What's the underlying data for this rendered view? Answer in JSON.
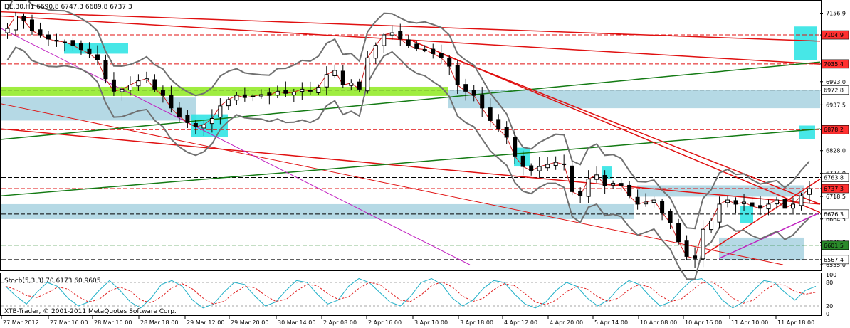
{
  "window": {
    "title": "DE.30,H1  6690.8 6747.3 6689.8 6737.3",
    "watermark": "XTB-Trader, © 2001-2011 MetaQuotes Software Corp."
  },
  "price_axis": {
    "ticks": [
      "7156.9",
      "7104.9",
      "7035.4",
      "6993.0",
      "6972.8",
      "6937.5",
      "6878.2",
      "6828.0",
      "6774.0",
      "6763.8",
      "6737.3",
      "6718.5",
      "6676.3",
      "6664.5",
      "6609.0",
      "6601.5",
      "6567.4",
      "6555.0"
    ]
  },
  "indicator": {
    "label": "Stoch(5,3,3) 70.6173 60.9605",
    "ticks": [
      "100",
      "80",
      "20",
      "0"
    ]
  },
  "colors": {
    "bull": "#ffffff",
    "bear": "#000000",
    "cyan": "#27e3e3",
    "zone": "#a8d2e0",
    "green_zone": "#8eea1e",
    "trend_red": "#e01010",
    "trend_green": "#137a13",
    "magenta": "#c020c0"
  },
  "price_labels": [
    {
      "text": "7104.9",
      "color": "#ff3030"
    },
    {
      "text": "7035.4",
      "color": "#ff3030"
    },
    {
      "text": "6972.8",
      "color": "#ffffff"
    },
    {
      "text": "6878.2",
      "color": "#ff3030"
    },
    {
      "text": "6763.8",
      "color": "#ffffff"
    },
    {
      "text": "6737.3",
      "color": "#ff3030"
    },
    {
      "text": "6676.3",
      "color": "#ffffff"
    },
    {
      "text": "6601.5",
      "color": "#2a8a2a"
    },
    {
      "text": "6567.4",
      "color": "#ffffff"
    }
  ],
  "chart_data": {
    "type": "candlestick",
    "title": "DE.30,H1  6690.8 6747.3 6689.8 6737.3",
    "symbol": "DE.30",
    "timeframe": "H1",
    "last_bar": {
      "open": 6690.8,
      "high": 6747.3,
      "low": 6689.8,
      "close": 6737.3
    },
    "time_labels": [
      "27 Mar 2012",
      "27 Mar 16:00",
      "28 Mar 10:00",
      "28 Mar 18:00",
      "29 Mar 12:00",
      "29 Mar 20:00",
      "30 Mar 14:00",
      "2 Apr 08:00",
      "2 Apr 16:00",
      "3 Apr 10:00",
      "3 Apr 18:00",
      "4 Apr 12:00",
      "4 Apr 20:00",
      "5 Apr 14:00",
      "10 Apr 08:00",
      "10 Apr 16:00",
      "11 Apr 10:00",
      "11 Apr 18:00"
    ],
    "ylim": [
      6545,
      7185
    ],
    "horizontal_levels": [
      7104.9,
      7035.4,
      6972.8,
      6878.2,
      6763.8,
      6676.3,
      6601.5,
      6567.4
    ],
    "close_path": [
      7120,
      7150,
      7140,
      7115,
      7105,
      7095,
      7090,
      7088,
      7080,
      7070,
      7060,
      7045,
      7000,
      6970,
      6975,
      6985,
      6995,
      7000,
      6975,
      6960,
      6930,
      6910,
      6895,
      6885,
      6890,
      6905,
      6935,
      6950,
      6960,
      6955,
      6958,
      6962,
      6960,
      6970,
      6965,
      6968,
      6975,
      6970,
      6980,
      7010,
      7020,
      6985,
      6990,
      6975,
      7050,
      7080,
      7105,
      7110,
      7095,
      7080,
      7072,
      7070,
      7060,
      7050,
      7030,
      6985,
      6970,
      6960,
      6930,
      6900,
      6880,
      6860,
      6815,
      6790,
      6780,
      6790,
      6795,
      6800,
      6795,
      6730,
      6720,
      6760,
      6770,
      6745,
      6750,
      6745,
      6720,
      6700,
      6705,
      6710,
      6680,
      6655,
      6610,
      6575,
      6570,
      6640,
      6660,
      6700,
      6710,
      6700,
      6705,
      6695,
      6690,
      6700,
      6710,
      6690,
      6700,
      6720,
      6737.3
    ],
    "stochastic": {
      "name": "Stoch(5,3,3)",
      "main": 70.6173,
      "signal": 60.9605,
      "ylim": [
        0,
        100
      ],
      "levels": [
        20,
        80
      ],
      "main_series": [
        70,
        45,
        25,
        55,
        80,
        70,
        40,
        20,
        30,
        60,
        85,
        60,
        30,
        15,
        40,
        75,
        85,
        70,
        35,
        15,
        25,
        55,
        80,
        75,
        45,
        20,
        30,
        60,
        85,
        80,
        50,
        25,
        35,
        70,
        90,
        80,
        55,
        30,
        20,
        45,
        80,
        90,
        75,
        40,
        20,
        35,
        65,
        85,
        80,
        50,
        25,
        15,
        30,
        60,
        80,
        70,
        40,
        20,
        35,
        65,
        85,
        75,
        45,
        20,
        30,
        60,
        85,
        90,
        70,
        35,
        15,
        30,
        60,
        85,
        80,
        55,
        35,
        60,
        70
      ]
    }
  }
}
